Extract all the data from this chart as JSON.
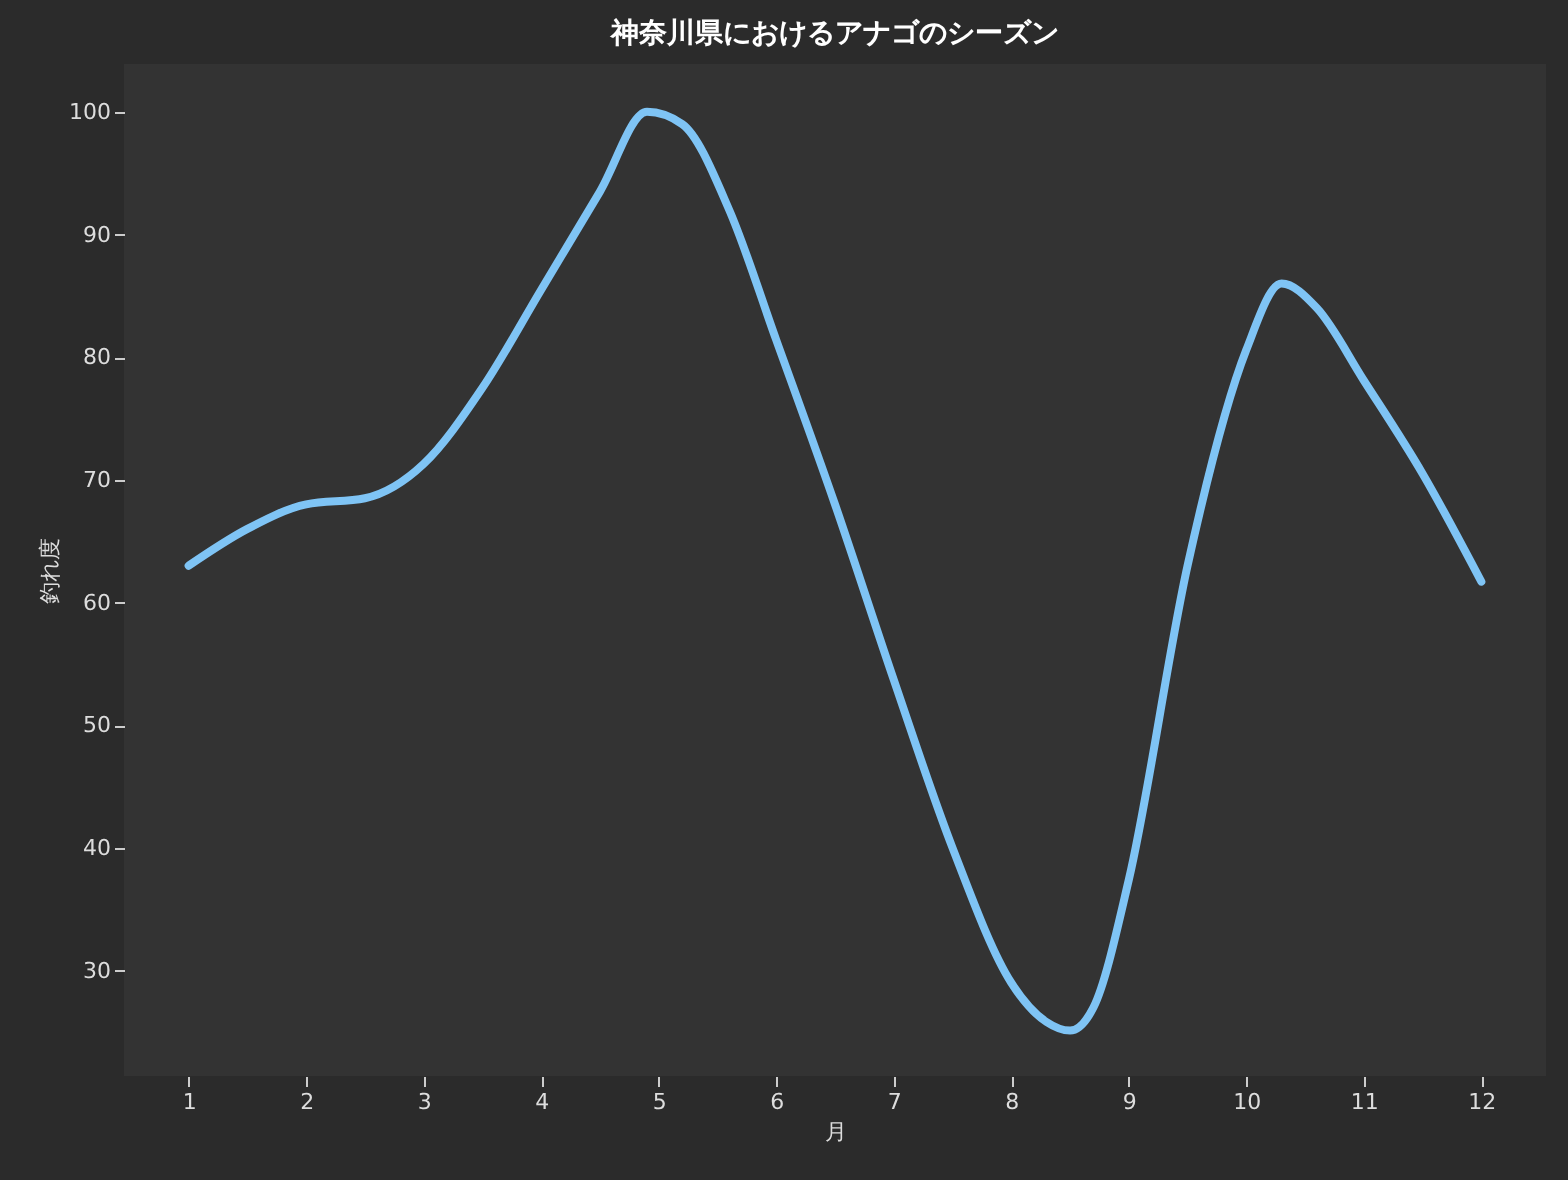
{
  "chart_data": {
    "type": "line",
    "title": "神奈川県におけるアナゴのシーズン",
    "xlabel": "月",
    "ylabel": "釣れ度",
    "xlim": [
      0.45,
      12.55
    ],
    "xticks": [
      1,
      2,
      3,
      4,
      5,
      6,
      7,
      8,
      9,
      10,
      11,
      12
    ],
    "ylim": [
      21.4,
      103.9
    ],
    "yticks": [
      30,
      40,
      50,
      60,
      70,
      80,
      90,
      100
    ],
    "grid": false,
    "series": [
      {
        "color": "#7fc4f5",
        "x": [
          1,
          1.5,
          2,
          2.5,
          3,
          3.5,
          4,
          4.5,
          4.9,
          5.2,
          5.6,
          6,
          6.5,
          7,
          7.5,
          8,
          8.3,
          8.5,
          8.7,
          9,
          9.5,
          10,
          10.3,
          10.6,
          11,
          11.5,
          12
        ],
        "values": [
          63.0,
          66.0,
          68.0,
          68.5,
          71.3,
          77.5,
          85.5,
          93.5,
          100,
          99.0,
          92.0,
          81.4,
          68.0,
          53.7,
          40.0,
          29.0,
          25.8,
          25.1,
          27.0,
          37.4,
          63.0,
          80.6,
          86.0,
          84.0,
          78.1,
          70.5,
          61.7
        ]
      }
    ]
  }
}
